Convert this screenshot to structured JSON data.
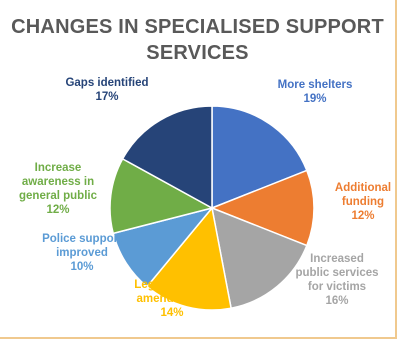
{
  "chart_data": {
    "type": "pie",
    "title_lines": [
      "CHANGES IN SPECIALISED SUPPORT",
      "SERVICES"
    ],
    "slices": [
      {
        "label_lines": [
          "More shelters"
        ],
        "value_text": "19%",
        "value": 19,
        "color": "#4472c4"
      },
      {
        "label_lines": [
          "Additional",
          "funding"
        ],
        "value_text": "12%",
        "value": 12,
        "color": "#ed7d31"
      },
      {
        "label_lines": [
          "Increased",
          "public services",
          "for victims"
        ],
        "value_text": "16%",
        "value": 16,
        "color": "#a5a5a5"
      },
      {
        "label_lines": [
          "Legislation or",
          "amendments"
        ],
        "value_text": "14%",
        "value": 14,
        "color": "#ffc000"
      },
      {
        "label_lines": [
          "Police support",
          "improved"
        ],
        "value_text": "10%",
        "value": 10,
        "color": "#5b9bd5"
      },
      {
        "label_lines": [
          "Increase",
          "awareness in",
          "general public"
        ],
        "value_text": "12%",
        "value": 12,
        "color": "#70ad47"
      },
      {
        "label_lines": [
          "Gaps identified"
        ],
        "value_text": "17%",
        "value": 17,
        "color": "#264478"
      }
    ],
    "label_colors": [
      "#4472c4",
      "#ed7d31",
      "#a5a5a5",
      "#ffc000",
      "#5b9bd5",
      "#70ad47",
      "#264478"
    ]
  }
}
